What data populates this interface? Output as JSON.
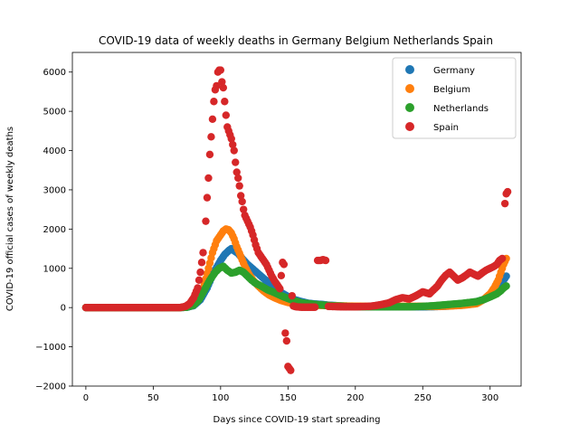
{
  "chart_data": {
    "type": "scatter",
    "title": "COVID-19 data of weekly deaths in Germany Belgium Netherlands Spain",
    "xlabel": "Days since COVID-19 start spreading",
    "ylabel": "COVID-19 official cases of weekly deaths",
    "xlim": [
      -10,
      323
    ],
    "ylim": [
      -2000,
      6500
    ],
    "xticks": [
      0,
      50,
      100,
      150,
      200,
      250,
      300
    ],
    "yticks": [
      -2000,
      -1000,
      0,
      1000,
      2000,
      3000,
      4000,
      5000,
      6000
    ],
    "grid": false,
    "legend_position": "top-right",
    "series": [
      {
        "name": "Germany",
        "color": "#1f77b4",
        "points": [
          [
            0,
            0
          ],
          [
            10,
            0
          ],
          [
            20,
            0
          ],
          [
            30,
            0
          ],
          [
            40,
            0
          ],
          [
            50,
            0
          ],
          [
            60,
            0
          ],
          [
            70,
            0
          ],
          [
            75,
            10
          ],
          [
            80,
            50
          ],
          [
            85,
            200
          ],
          [
            90,
            500
          ],
          [
            95,
            900
          ],
          [
            100,
            1200
          ],
          [
            103,
            1350
          ],
          [
            106,
            1450
          ],
          [
            108,
            1500
          ],
          [
            110,
            1450
          ],
          [
            113,
            1380
          ],
          [
            116,
            1250
          ],
          [
            120,
            1100
          ],
          [
            125,
            950
          ],
          [
            130,
            800
          ],
          [
            135,
            650
          ],
          [
            140,
            500
          ],
          [
            145,
            380
          ],
          [
            150,
            280
          ],
          [
            155,
            200
          ],
          [
            160,
            150
          ],
          [
            165,
            110
          ],
          [
            170,
            90
          ],
          [
            175,
            80
          ],
          [
            180,
            60
          ],
          [
            185,
            50
          ],
          [
            190,
            40
          ],
          [
            195,
            35
          ],
          [
            200,
            30
          ],
          [
            210,
            25
          ],
          [
            220,
            20
          ],
          [
            230,
            20
          ],
          [
            240,
            20
          ],
          [
            250,
            20
          ],
          [
            260,
            25
          ],
          [
            270,
            40
          ],
          [
            280,
            80
          ],
          [
            290,
            150
          ],
          [
            295,
            200
          ],
          [
            300,
            280
          ],
          [
            305,
            400
          ],
          [
            308,
            550
          ],
          [
            310,
            700
          ],
          [
            312,
            800
          ]
        ]
      },
      {
        "name": "Belgium",
        "color": "#ff7f0e",
        "points": [
          [
            0,
            0
          ],
          [
            10,
            0
          ],
          [
            20,
            0
          ],
          [
            30,
            0
          ],
          [
            40,
            0
          ],
          [
            50,
            0
          ],
          [
            60,
            0
          ],
          [
            70,
            0
          ],
          [
            75,
            20
          ],
          [
            80,
            80
          ],
          [
            85,
            300
          ],
          [
            88,
            600
          ],
          [
            91,
            1000
          ],
          [
            94,
            1400
          ],
          [
            97,
            1700
          ],
          [
            100,
            1850
          ],
          [
            102,
            1950
          ],
          [
            104,
            2000
          ],
          [
            106,
            1980
          ],
          [
            108,
            1900
          ],
          [
            110,
            1750
          ],
          [
            112,
            1550
          ],
          [
            115,
            1300
          ],
          [
            118,
            1050
          ],
          [
            121,
            850
          ],
          [
            124,
            700
          ],
          [
            128,
            550
          ],
          [
            132,
            420
          ],
          [
            136,
            320
          ],
          [
            140,
            250
          ],
          [
            145,
            180
          ],
          [
            150,
            130
          ],
          [
            155,
            100
          ],
          [
            160,
            80
          ],
          [
            170,
            60
          ],
          [
            180,
            50
          ],
          [
            190,
            40
          ],
          [
            200,
            35
          ],
          [
            210,
            30
          ],
          [
            220,
            30
          ],
          [
            230,
            30
          ],
          [
            240,
            30
          ],
          [
            250,
            30
          ],
          [
            260,
            30
          ],
          [
            270,
            40
          ],
          [
            280,
            60
          ],
          [
            290,
            100
          ],
          [
            295,
            200
          ],
          [
            300,
            350
          ],
          [
            303,
            500
          ],
          [
            306,
            700
          ],
          [
            308,
            900
          ],
          [
            310,
            1100
          ],
          [
            312,
            1250
          ]
        ]
      },
      {
        "name": "Netherlands",
        "color": "#2ca02c",
        "points": [
          [
            0,
            0
          ],
          [
            10,
            0
          ],
          [
            20,
            0
          ],
          [
            30,
            0
          ],
          [
            40,
            0
          ],
          [
            50,
            0
          ],
          [
            60,
            0
          ],
          [
            70,
            0
          ],
          [
            75,
            10
          ],
          [
            80,
            60
          ],
          [
            84,
            200
          ],
          [
            88,
            450
          ],
          [
            92,
            700
          ],
          [
            96,
            900
          ],
          [
            99,
            1000
          ],
          [
            102,
            1050
          ],
          [
            105,
            950
          ],
          [
            108,
            880
          ],
          [
            111,
            900
          ],
          [
            114,
            950
          ],
          [
            117,
            900
          ],
          [
            120,
            800
          ],
          [
            123,
            700
          ],
          [
            126,
            620
          ],
          [
            130,
            550
          ],
          [
            135,
            450
          ],
          [
            140,
            380
          ],
          [
            145,
            300
          ],
          [
            150,
            230
          ],
          [
            155,
            170
          ],
          [
            160,
            120
          ],
          [
            170,
            80
          ],
          [
            180,
            50
          ],
          [
            190,
            30
          ],
          [
            200,
            20
          ],
          [
            210,
            20
          ],
          [
            220,
            20
          ],
          [
            230,
            20
          ],
          [
            240,
            20
          ],
          [
            250,
            30
          ],
          [
            260,
            50
          ],
          [
            270,
            80
          ],
          [
            280,
            110
          ],
          [
            290,
            150
          ],
          [
            295,
            200
          ],
          [
            300,
            270
          ],
          [
            305,
            350
          ],
          [
            308,
            430
          ],
          [
            310,
            500
          ],
          [
            312,
            550
          ]
        ]
      },
      {
        "name": "Spain",
        "color": "#d62728",
        "points": [
          [
            0,
            0
          ],
          [
            10,
            0
          ],
          [
            20,
            0
          ],
          [
            30,
            0
          ],
          [
            40,
            0
          ],
          [
            50,
            0
          ],
          [
            60,
            0
          ],
          [
            70,
            0
          ],
          [
            74,
            30
          ],
          [
            77,
            100
          ],
          [
            80,
            250
          ],
          [
            83,
            500
          ],
          [
            85,
            900
          ],
          [
            87,
            1400
          ],
          [
            89,
            2200
          ],
          [
            90,
            2800
          ],
          [
            91,
            3300
          ],
          [
            92,
            3900
          ],
          [
            93,
            4350
          ],
          [
            94,
            4800
          ],
          [
            95,
            5250
          ],
          [
            96,
            5550
          ],
          [
            97,
            5650
          ],
          [
            98,
            6000
          ],
          [
            99,
            6050
          ],
          [
            100,
            6050
          ],
          [
            101,
            5750
          ],
          [
            102,
            5600
          ],
          [
            103,
            5250
          ],
          [
            104,
            4900
          ],
          [
            105,
            4600
          ],
          [
            106,
            4500
          ],
          [
            107,
            4400
          ],
          [
            108,
            4300
          ],
          [
            109,
            4150
          ],
          [
            110,
            4000
          ],
          [
            111,
            3700
          ],
          [
            112,
            3450
          ],
          [
            113,
            3300
          ],
          [
            114,
            3100
          ],
          [
            115,
            2850
          ],
          [
            116,
            2700
          ],
          [
            117,
            2500
          ],
          [
            118,
            2350
          ],
          [
            120,
            2200
          ],
          [
            122,
            2050
          ],
          [
            124,
            1850
          ],
          [
            126,
            1600
          ],
          [
            128,
            1400
          ],
          [
            130,
            1300
          ],
          [
            132,
            1200
          ],
          [
            134,
            1100
          ],
          [
            136,
            950
          ],
          [
            138,
            800
          ],
          [
            140,
            680
          ],
          [
            142,
            580
          ],
          [
            144,
            480
          ],
          [
            146,
            1150
          ],
          [
            147,
            1100
          ],
          [
            148,
            -650
          ],
          [
            149,
            -850
          ],
          [
            150,
            -1500
          ],
          [
            151,
            -1550
          ],
          [
            152,
            -1600
          ],
          [
            153,
            300
          ],
          [
            154,
            40
          ],
          [
            156,
            20
          ],
          [
            160,
            10
          ],
          [
            165,
            10
          ],
          [
            170,
            10
          ],
          [
            172,
            1200
          ],
          [
            174,
            1200
          ],
          [
            176,
            1220
          ],
          [
            178,
            1200
          ],
          [
            180,
            30
          ],
          [
            190,
            20
          ],
          [
            200,
            20
          ],
          [
            210,
            30
          ],
          [
            215,
            50
          ],
          [
            220,
            80
          ],
          [
            225,
            120
          ],
          [
            230,
            200
          ],
          [
            235,
            250
          ],
          [
            240,
            220
          ],
          [
            245,
            300
          ],
          [
            250,
            400
          ],
          [
            255,
            350
          ],
          [
            258,
            450
          ],
          [
            261,
            550
          ],
          [
            264,
            700
          ],
          [
            267,
            820
          ],
          [
            270,
            900
          ],
          [
            273,
            800
          ],
          [
            276,
            700
          ],
          [
            279,
            750
          ],
          [
            282,
            820
          ],
          [
            285,
            900
          ],
          [
            288,
            850
          ],
          [
            291,
            800
          ],
          [
            294,
            880
          ],
          [
            297,
            950
          ],
          [
            300,
            1000
          ],
          [
            303,
            1050
          ],
          [
            305,
            1100
          ],
          [
            307,
            1200
          ],
          [
            309,
            1250
          ],
          [
            311,
            2650
          ],
          [
            312,
            2900
          ],
          [
            313,
            2950
          ]
        ]
      }
    ]
  }
}
